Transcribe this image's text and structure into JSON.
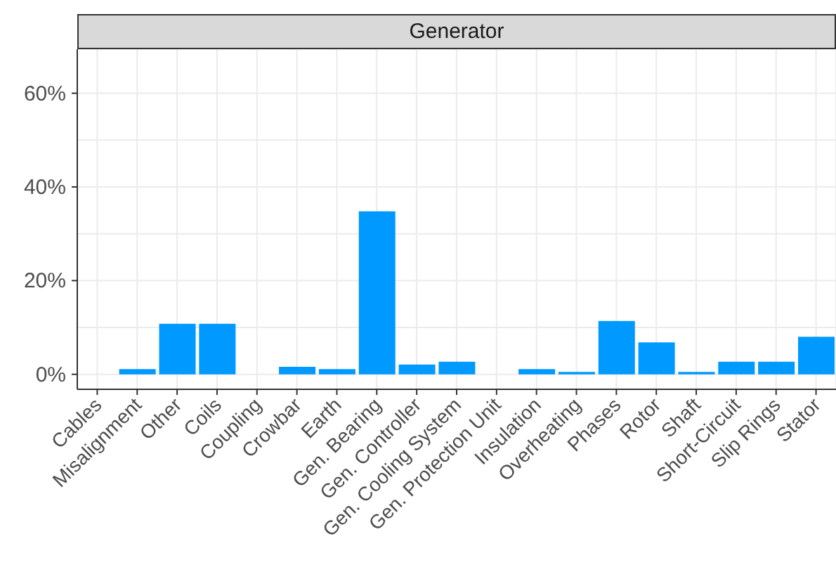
{
  "chart_data": {
    "type": "bar",
    "title": "Generator",
    "categories": [
      "Cables",
      "Misalignment",
      "Other",
      "Coils",
      "Coupling",
      "Crowbar",
      "Earth",
      "Gen. Bearing",
      "Gen. Controller",
      "Gen. Cooling System",
      "Gen. Protection Unit",
      "Insulation",
      "Overheating",
      "Phases",
      "Rotor",
      "Shaft",
      "Short-Circuit",
      "Slip Rings",
      "Stator"
    ],
    "values": [
      0,
      1.1,
      10.8,
      10.8,
      0,
      1.6,
      1.1,
      34.8,
      2.1,
      2.7,
      0,
      1.1,
      0.5,
      11.4,
      6.8,
      0.5,
      2.7,
      2.7,
      8.0
    ],
    "color": "#0099ff",
    "ylim": [
      -3.2,
      69.4
    ],
    "yticks": [
      {
        "value": 0,
        "label": "0%"
      },
      {
        "value": 10,
        "label": null
      },
      {
        "value": 20,
        "label": "20%"
      },
      {
        "value": 30,
        "label": null
      },
      {
        "value": 40,
        "label": "40%"
      },
      {
        "value": 50,
        "label": null
      },
      {
        "value": 60,
        "label": "60%"
      }
    ],
    "grid": true
  }
}
